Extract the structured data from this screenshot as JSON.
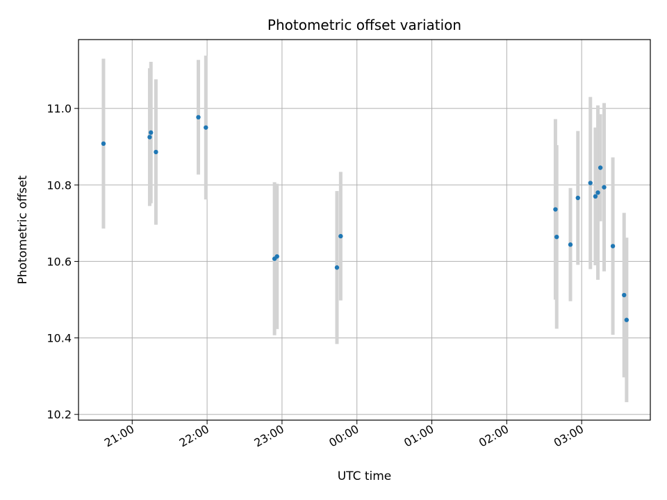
{
  "chart_data": {
    "type": "scatter",
    "title": "Photometric offset variation",
    "xlabel": "UTC time",
    "ylabel": "Photometric offset",
    "x_axis_type": "time",
    "xlim": [
      "20:17",
      "27:55"
    ],
    "ylim": [
      10.185,
      11.18
    ],
    "grid": true,
    "legend": "none",
    "x_ticks": [
      "21:00",
      "22:00",
      "23:00",
      "00:00",
      "01:00",
      "02:00",
      "03:00"
    ],
    "y_ticks": [
      "10.2",
      "10.4",
      "10.6",
      "10.8",
      "11.0"
    ],
    "y_tick_values": [
      10.2,
      10.4,
      10.6,
      10.8,
      11.0
    ],
    "colors": {
      "point": "#1f77b4",
      "errorbar": "#d3d3d3",
      "grid": "#b0b0b0"
    },
    "points": [
      {
        "t": "20:37",
        "y": 10.908,
        "err": 0.222
      },
      {
        "t": "21:14",
        "y": 10.925,
        "err": 0.18
      },
      {
        "t": "21:15",
        "y": 10.937,
        "err": 0.185
      },
      {
        "t": "21:19",
        "y": 10.886,
        "err": 0.19
      },
      {
        "t": "21:53",
        "y": 10.977,
        "err": 0.15
      },
      {
        "t": "21:59",
        "y": 10.95,
        "err": 0.188
      },
      {
        "t": "22:54",
        "y": 10.607,
        "err": 0.2
      },
      {
        "t": "22:56",
        "y": 10.613,
        "err": 0.19
      },
      {
        "t": "23:44",
        "y": 10.584,
        "err": 0.2
      },
      {
        "t": "23:47",
        "y": 10.666,
        "err": 0.168
      },
      {
        "t": "26:39",
        "y": 10.736,
        "err": 0.236
      },
      {
        "t": "26:40",
        "y": 10.664,
        "err": 0.24
      },
      {
        "t": "26:51",
        "y": 10.644,
        "err": 0.148
      },
      {
        "t": "26:57",
        "y": 10.766,
        "err": 0.175
      },
      {
        "t": "27:07",
        "y": 10.805,
        "err": 0.225
      },
      {
        "t": "27:11",
        "y": 10.77,
        "err": 0.18
      },
      {
        "t": "27:13",
        "y": 10.78,
        "err": 0.228
      },
      {
        "t": "27:15",
        "y": 10.845,
        "err": 0.14
      },
      {
        "t": "27:18",
        "y": 10.794,
        "err": 0.22
      },
      {
        "t": "27:25",
        "y": 10.64,
        "err": 0.232
      },
      {
        "t": "27:34",
        "y": 10.512,
        "err": 0.215
      },
      {
        "t": "27:36",
        "y": 10.447,
        "err": 0.215
      }
    ]
  }
}
